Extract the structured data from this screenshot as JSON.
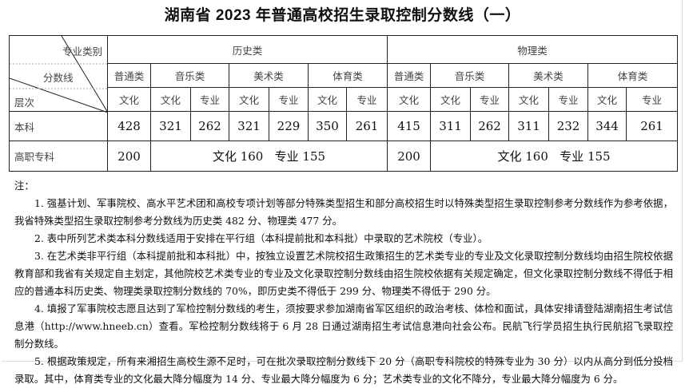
{
  "title": "湖南省 2023 年普通高校招生录取控制分数线（一）",
  "corner": {
    "top": "专业类别",
    "middle": "分数线",
    "bottom": "层次"
  },
  "groups": [
    "历史类",
    "物理类"
  ],
  "categories": [
    "普通类",
    "音乐类",
    "美术类",
    "体育类"
  ],
  "subheads": [
    "文化",
    "文化",
    "专业",
    "文化",
    "专业",
    "文化",
    "专业"
  ],
  "rows": [
    {
      "label": "本科",
      "history": [
        "428",
        "321",
        "262",
        "321",
        "229",
        "350",
        "261"
      ],
      "physics": [
        "415",
        "311",
        "262",
        "311",
        "232",
        "344",
        "261"
      ]
    },
    {
      "label": "高职专科",
      "history_general": "200",
      "history_art": "文化 160   专业 155",
      "physics_general": "200",
      "physics_art": "文化 160   专业 155"
    }
  ],
  "notes": {
    "heading": "注：",
    "items": [
      "1. 强基计划、军事院校、高水平艺术团和高校专项计划等部分特殊类型招生和部分高校招生时以特殊类型招生录取控制参考分数线作为参考依据，我省特殊类型招生录取控制参考分数线为历史类 482 分、物理类 477 分。",
      "2. 表中所列艺术类本科分数线适用于安排在平行组（本科提前批和本科批）中录取的艺术院校（专业）。",
      "3. 在艺术类非平行组（本科提前批和本科批）中，按独立设置艺术院校招生政策招生的艺术类专业的专业及文化录取控制分数线均由招生院校依据教育部和我省有关规定自主划定，其他院校艺术类专业的专业及文化录取控制分数线由招生院校依据有关规定确定，但文化录取控制分数线不得低于相应的普通本科历史类、物理类录取控制分数线的 70%，即历史类不得低于 299 分、物理类不得低于 290 分。",
      "4. 填报了军事院校志愿且达到了军检控制分数线的考生，须按要求参加湖南省军区组织的政治考核、体检和面试，具体安排请登陆湖南招生考试信息港（http://www.hneeb.cn）查看。军检控制分数线将于 6 月 28 日通过湖南招生考试信息港向社会公布。民航飞行学员招生执行民航招飞录取控制分数线。",
      "5. 根据政策规定，所有来湘招生高校生源不足时，可在批次录取控制分数线下 20 分（高职专科院校的特殊专业为 30 分）以内从高分到低分投档录取。其中，体育类专业的文化最大降分幅度为 14 分、专业最大降分幅度为 6 分；艺术类专业的文化不降分，专业最大降分幅度为 6 分。"
    ]
  }
}
